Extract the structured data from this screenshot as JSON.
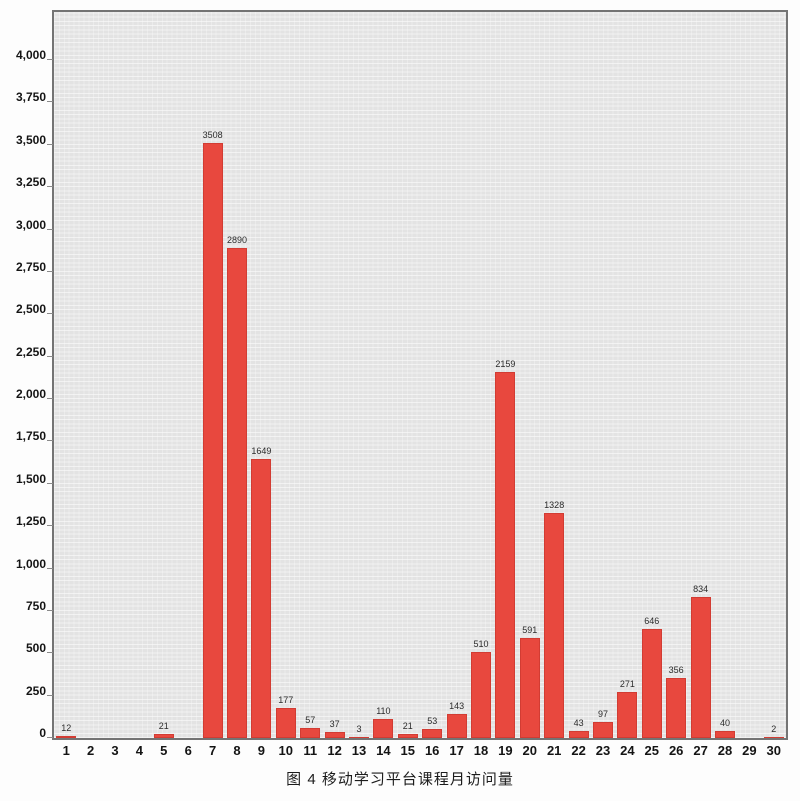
{
  "figure": {
    "caption": "图 4 移动学习平台课程月访问量"
  },
  "chart_data": {
    "type": "bar",
    "title": "图 4 移动学习平台课程月访问量",
    "categories": [
      "1",
      "2",
      "3",
      "4",
      "5",
      "6",
      "7",
      "8",
      "9",
      "10",
      "11",
      "12",
      "13",
      "14",
      "15",
      "16",
      "17",
      "18",
      "19",
      "20",
      "21",
      "22",
      "23",
      "24",
      "25",
      "26",
      "27",
      "28",
      "29",
      "30"
    ],
    "values": [
      12,
      0,
      0,
      0,
      21,
      0,
      3508,
      2890,
      1649,
      177,
      57,
      37,
      3,
      110,
      21,
      53,
      143,
      510,
      2159,
      591,
      1328,
      43,
      97,
      271,
      646,
      356,
      834,
      40,
      0,
      2
    ],
    "bar_labels": [
      "12",
      "",
      "",
      "",
      "21",
      "",
      "3508",
      "2890",
      "1649",
      "177",
      "57",
      "37",
      "3",
      "110",
      "21",
      "53",
      "143",
      "510",
      "2159",
      "591",
      "1328",
      "43",
      "97",
      "271",
      "646",
      "356",
      "834",
      "40",
      "",
      "2"
    ],
    "xlabel": "",
    "ylabel": "",
    "ylim": [
      0,
      4200
    ],
    "y_ticks": [
      "0",
      "250",
      "500",
      "750",
      "1,000",
      "1,250",
      "1,500",
      "1,750",
      "2,000",
      "2,250",
      "2,500",
      "2,750",
      "3,000",
      "3,250",
      "3,500",
      "3,750",
      "4,000"
    ],
    "grid": "on",
    "legend": "none",
    "bar_color": "#e8483e",
    "plot_bg": "#e3e3e3",
    "grid_line_color": "#f2f2f2",
    "axis_border_color": "#747474"
  }
}
